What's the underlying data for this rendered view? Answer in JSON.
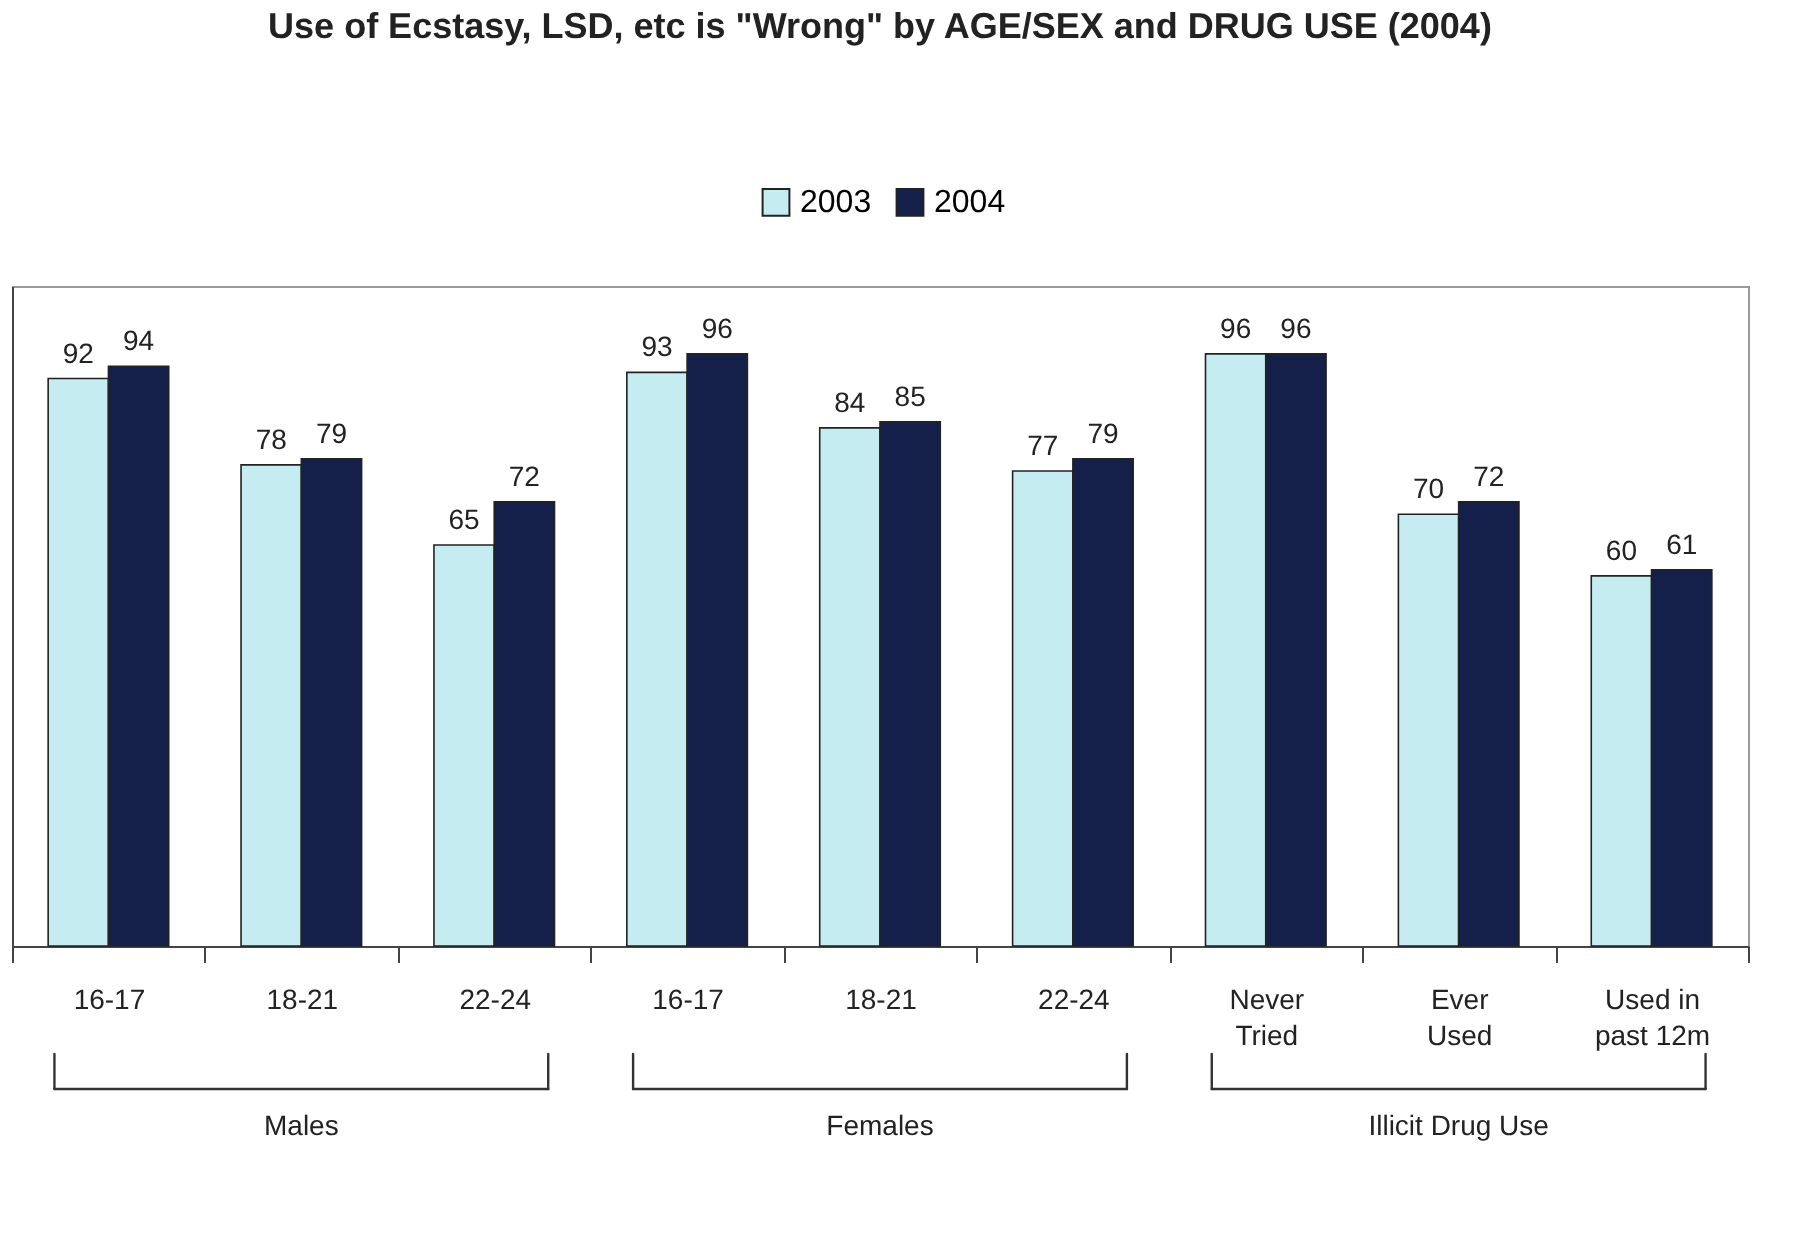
{
  "chart_data": {
    "type": "bar",
    "title": "Use of Ecstasy, LSD, etc is \"Wrong\" by AGE/SEX and DRUG USE (2004)",
    "categories": [
      "16-17",
      "18-21",
      "22-24",
      "16-17",
      "18-21",
      "22-24",
      "Never\nTried",
      "Ever\nUsed",
      "Used in\npast 12m"
    ],
    "series": [
      {
        "name": "2003",
        "color": "#c5ecf0",
        "values": [
          92,
          78,
          65,
          93,
          84,
          77,
          96,
          70,
          60
        ]
      },
      {
        "name": "2004",
        "color": "#15204a",
        "values": [
          94,
          79,
          72,
          96,
          85,
          79,
          96,
          72,
          61
        ]
      }
    ],
    "annotations": [
      "Males",
      "Females",
      "Illicit Drug Use"
    ],
    "ylim": [
      0,
      107
    ],
    "data_labels": true,
    "legend": "top",
    "grid": false,
    "tick_labels": "x"
  }
}
